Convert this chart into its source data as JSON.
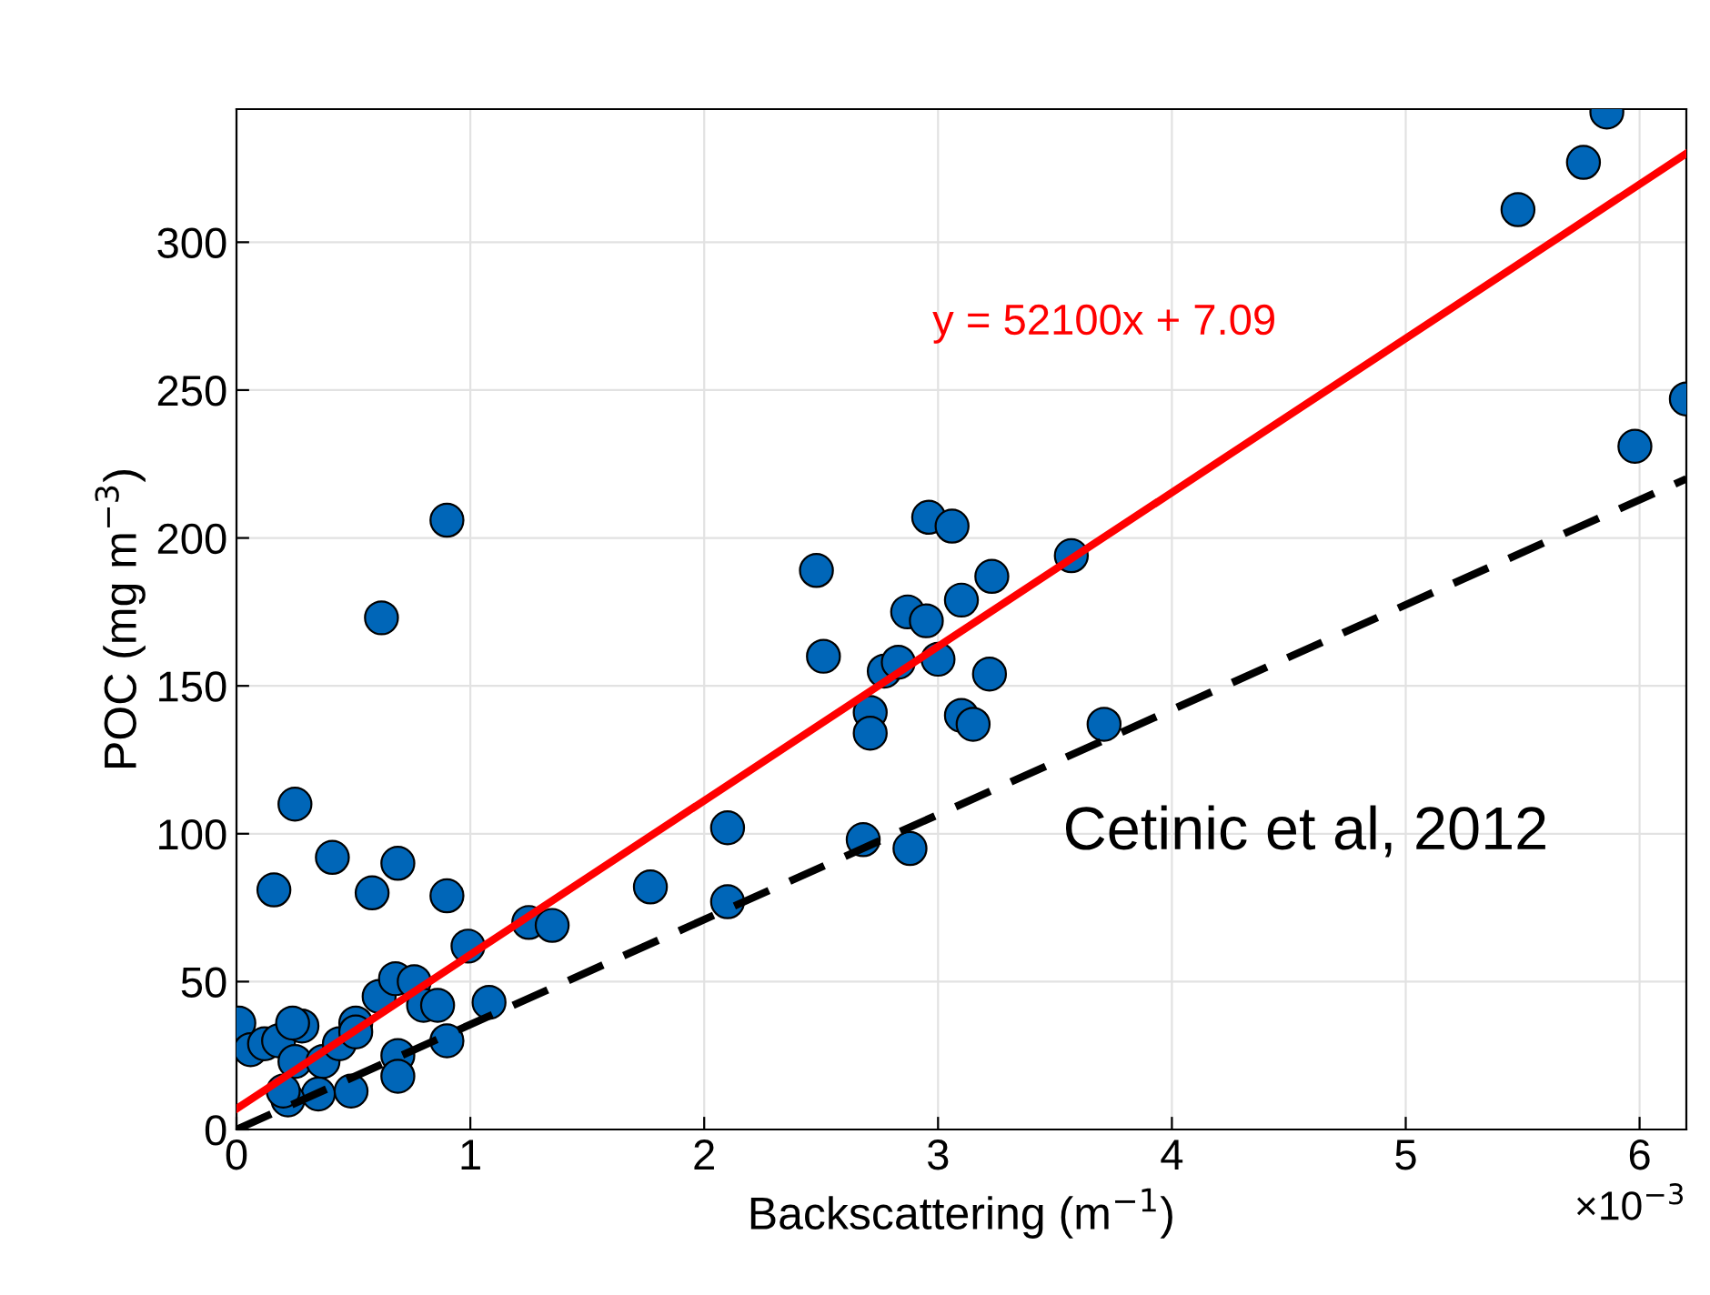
{
  "chart_data": {
    "type": "scatter",
    "xlabel": "Backscattering (m$^{−1}$)",
    "ylabel": "POC (mg m$^{−3}$)",
    "xlim": [
      0,
      6.2
    ],
    "ylim": [
      0,
      345
    ],
    "xticks": [
      0,
      1,
      2,
      3,
      4,
      5,
      6
    ],
    "yticks": [
      0,
      50,
      100,
      150,
      200,
      250,
      300
    ],
    "grid": true,
    "marker": "circle",
    "series": [
      {
        "color": "#0066b8",
        "x": [
          0.01,
          0.06,
          0.12,
          0.18,
          0.28,
          0.24,
          0.25,
          0.37,
          0.44,
          0.51,
          0.51,
          0.61,
          0.68,
          0.76,
          0.8,
          0.86,
          0.9,
          0.69,
          0.69,
          0.49,
          0.35,
          0.22,
          0.2,
          0.99,
          1.08,
          1.25,
          1.35,
          1.77,
          2.1,
          2.1,
          0.25,
          0.16,
          0.41,
          0.58,
          0.69,
          0.9,
          0.62,
          0.9,
          2.96,
          3.06,
          2.48,
          3.23,
          3.57,
          3.1,
          2.87,
          2.95,
          2.51,
          2.77,
          2.83,
          3.0,
          3.22,
          2.71,
          2.71,
          3.1,
          3.15,
          3.71,
          2.68,
          2.88,
          5.86,
          5.76,
          5.48,
          6.2,
          5.98
        ],
        "values": [
          36,
          27,
          29,
          30,
          35,
          36,
          23,
          23,
          29,
          36,
          33,
          45,
          51,
          50,
          42,
          42,
          30,
          25,
          18,
          13,
          12,
          10,
          13,
          62,
          43,
          70,
          69,
          82,
          102,
          77,
          110,
          81,
          92,
          80,
          90,
          79,
          173,
          206,
          207,
          204,
          189,
          187,
          194,
          179,
          175,
          172,
          160,
          155,
          158,
          159,
          154,
          141,
          134,
          140,
          137,
          137,
          98,
          95,
          344,
          327,
          311,
          247,
          231
        ]
      },
      {
        "type": "line",
        "color": "#ff0000",
        "line_style": "solid",
        "marker": "none",
        "x": [
          0,
          6.2
        ],
        "values": [
          7,
          330
        ]
      },
      {
        "type": "line",
        "color": "#000000",
        "line_style": "dashed",
        "marker": "none",
        "x": [
          0,
          6.2
        ],
        "values": [
          0,
          220
        ]
      }
    ],
    "annotations": [
      "y = 52100x + 7.09",
      "Cetinic et al, 2012",
      "×10$^{−3}$"
    ]
  }
}
